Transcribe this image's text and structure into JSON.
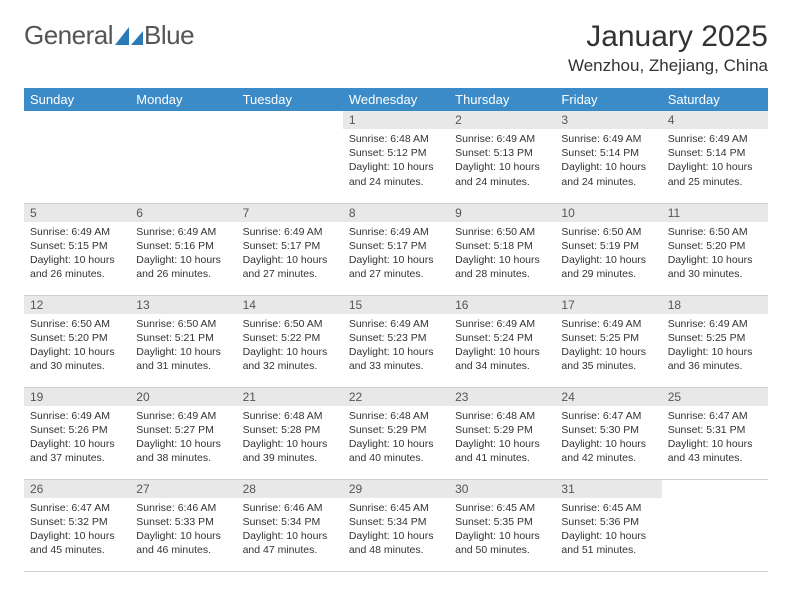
{
  "brand": {
    "word1": "General",
    "word2": "Blue"
  },
  "title": "January 2025",
  "location": "Wenzhou, Zhejiang, China",
  "colors": {
    "header_bg": "#3b8bc9",
    "header_text": "#ffffff",
    "daynum_bg": "#e8e8e8",
    "text": "#333333",
    "brand_blue": "#2a7ab8"
  },
  "day_names": [
    "Sunday",
    "Monday",
    "Tuesday",
    "Wednesday",
    "Thursday",
    "Friday",
    "Saturday"
  ],
  "weeks": [
    [
      null,
      null,
      null,
      {
        "n": "1",
        "sr": "6:48 AM",
        "ss": "5:12 PM",
        "dl": "10 hours and 24 minutes."
      },
      {
        "n": "2",
        "sr": "6:49 AM",
        "ss": "5:13 PM",
        "dl": "10 hours and 24 minutes."
      },
      {
        "n": "3",
        "sr": "6:49 AM",
        "ss": "5:14 PM",
        "dl": "10 hours and 24 minutes."
      },
      {
        "n": "4",
        "sr": "6:49 AM",
        "ss": "5:14 PM",
        "dl": "10 hours and 25 minutes."
      }
    ],
    [
      {
        "n": "5",
        "sr": "6:49 AM",
        "ss": "5:15 PM",
        "dl": "10 hours and 26 minutes."
      },
      {
        "n": "6",
        "sr": "6:49 AM",
        "ss": "5:16 PM",
        "dl": "10 hours and 26 minutes."
      },
      {
        "n": "7",
        "sr": "6:49 AM",
        "ss": "5:17 PM",
        "dl": "10 hours and 27 minutes."
      },
      {
        "n": "8",
        "sr": "6:49 AM",
        "ss": "5:17 PM",
        "dl": "10 hours and 27 minutes."
      },
      {
        "n": "9",
        "sr": "6:50 AM",
        "ss": "5:18 PM",
        "dl": "10 hours and 28 minutes."
      },
      {
        "n": "10",
        "sr": "6:50 AM",
        "ss": "5:19 PM",
        "dl": "10 hours and 29 minutes."
      },
      {
        "n": "11",
        "sr": "6:50 AM",
        "ss": "5:20 PM",
        "dl": "10 hours and 30 minutes."
      }
    ],
    [
      {
        "n": "12",
        "sr": "6:50 AM",
        "ss": "5:20 PM",
        "dl": "10 hours and 30 minutes."
      },
      {
        "n": "13",
        "sr": "6:50 AM",
        "ss": "5:21 PM",
        "dl": "10 hours and 31 minutes."
      },
      {
        "n": "14",
        "sr": "6:50 AM",
        "ss": "5:22 PM",
        "dl": "10 hours and 32 minutes."
      },
      {
        "n": "15",
        "sr": "6:49 AM",
        "ss": "5:23 PM",
        "dl": "10 hours and 33 minutes."
      },
      {
        "n": "16",
        "sr": "6:49 AM",
        "ss": "5:24 PM",
        "dl": "10 hours and 34 minutes."
      },
      {
        "n": "17",
        "sr": "6:49 AM",
        "ss": "5:25 PM",
        "dl": "10 hours and 35 minutes."
      },
      {
        "n": "18",
        "sr": "6:49 AM",
        "ss": "5:25 PM",
        "dl": "10 hours and 36 minutes."
      }
    ],
    [
      {
        "n": "19",
        "sr": "6:49 AM",
        "ss": "5:26 PM",
        "dl": "10 hours and 37 minutes."
      },
      {
        "n": "20",
        "sr": "6:49 AM",
        "ss": "5:27 PM",
        "dl": "10 hours and 38 minutes."
      },
      {
        "n": "21",
        "sr": "6:48 AM",
        "ss": "5:28 PM",
        "dl": "10 hours and 39 minutes."
      },
      {
        "n": "22",
        "sr": "6:48 AM",
        "ss": "5:29 PM",
        "dl": "10 hours and 40 minutes."
      },
      {
        "n": "23",
        "sr": "6:48 AM",
        "ss": "5:29 PM",
        "dl": "10 hours and 41 minutes."
      },
      {
        "n": "24",
        "sr": "6:47 AM",
        "ss": "5:30 PM",
        "dl": "10 hours and 42 minutes."
      },
      {
        "n": "25",
        "sr": "6:47 AM",
        "ss": "5:31 PM",
        "dl": "10 hours and 43 minutes."
      }
    ],
    [
      {
        "n": "26",
        "sr": "6:47 AM",
        "ss": "5:32 PM",
        "dl": "10 hours and 45 minutes."
      },
      {
        "n": "27",
        "sr": "6:46 AM",
        "ss": "5:33 PM",
        "dl": "10 hours and 46 minutes."
      },
      {
        "n": "28",
        "sr": "6:46 AM",
        "ss": "5:34 PM",
        "dl": "10 hours and 47 minutes."
      },
      {
        "n": "29",
        "sr": "6:45 AM",
        "ss": "5:34 PM",
        "dl": "10 hours and 48 minutes."
      },
      {
        "n": "30",
        "sr": "6:45 AM",
        "ss": "5:35 PM",
        "dl": "10 hours and 50 minutes."
      },
      {
        "n": "31",
        "sr": "6:45 AM",
        "ss": "5:36 PM",
        "dl": "10 hours and 51 minutes."
      },
      null
    ]
  ],
  "labels": {
    "sunrise": "Sunrise:",
    "sunset": "Sunset:",
    "daylight": "Daylight:"
  }
}
